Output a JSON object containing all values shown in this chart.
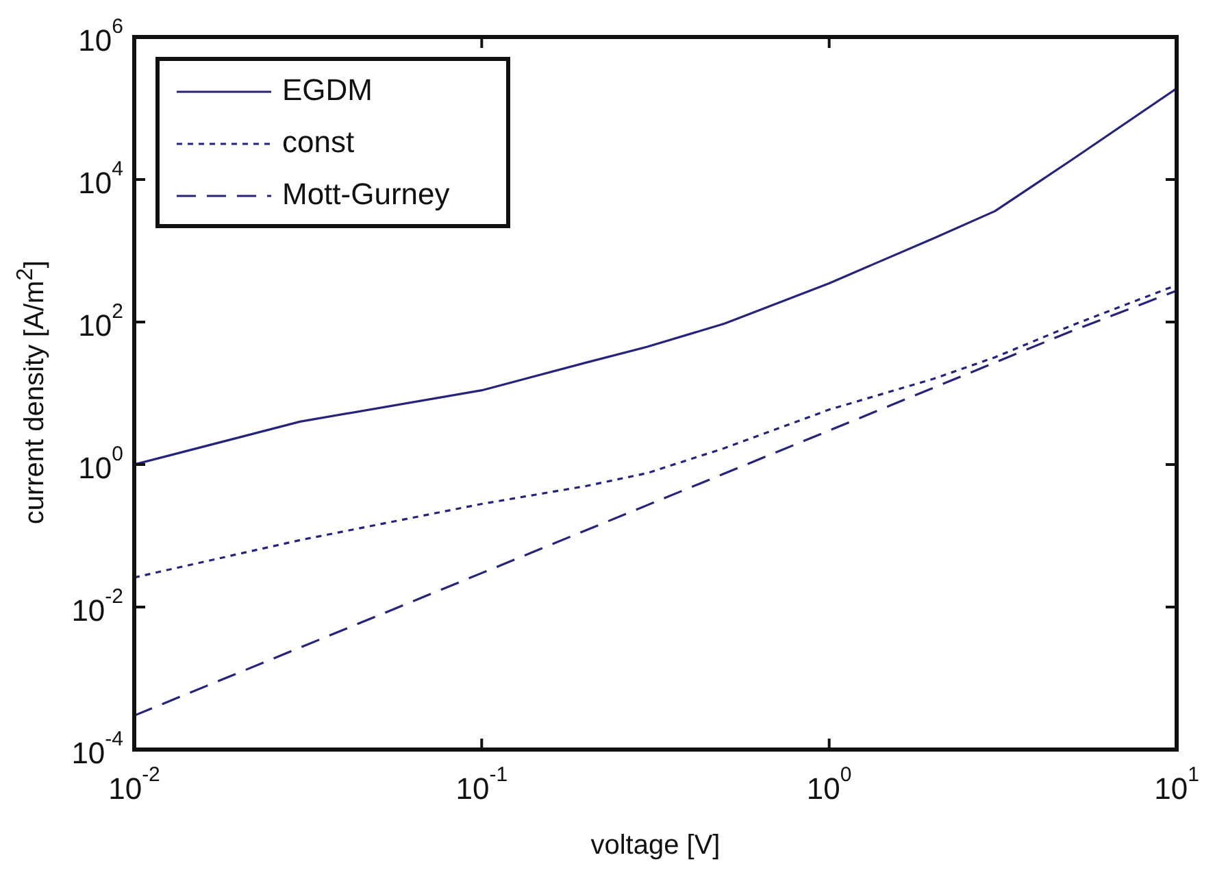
{
  "chart_data": {
    "type": "line",
    "xlabel": "voltage [V]",
    "ylabel": "current density [A/m$^{2}$]",
    "log": "xy",
    "grid": false,
    "legend": "top left",
    "marker": "none",
    "xlim": [
      0.01,
      10
    ],
    "ylim": [
      0.0001,
      1000000
    ],
    "xticks": [
      {
        "value": 0.01,
        "label": "10$^{-2}$"
      },
      {
        "value": 0.1,
        "label": "10$^{-1}$"
      },
      {
        "value": 1,
        "label": "10$^{0}$"
      },
      {
        "value": 10,
        "label": "10$^{1}$"
      }
    ],
    "yticks": [
      {
        "value": 0.0001,
        "label": "10$^{-4}$"
      },
      {
        "value": 0.01,
        "label": "10$^{-2}$"
      },
      {
        "value": 1,
        "label": "10$^{0}$"
      },
      {
        "value": 100,
        "label": "10$^{2}$"
      },
      {
        "value": 10000,
        "label": "10$^{4}$"
      },
      {
        "value": 1000000,
        "label": "10$^{6}$"
      }
    ],
    "x": [
      0.01,
      0.03,
      0.1,
      0.2,
      0.3,
      0.5,
      1,
      2,
      3,
      5,
      10
    ],
    "series": [
      {
        "name": "EGDM",
        "color": "#25237a",
        "line_style": "solid",
        "values": [
          1,
          4,
          11,
          27,
          45,
          95,
          350,
          1500,
          3600,
          19000,
          190000
        ]
      },
      {
        "name": "const",
        "color": "#25237a",
        "line_style": "dotted",
        "values": [
          0.026,
          0.087,
          0.28,
          0.5,
          0.76,
          1.7,
          5.9,
          16,
          32,
          90,
          330
        ]
      },
      {
        "name": "Mott-Gurney",
        "color": "#25237a",
        "line_style": "dashed",
        "values": [
          0.0003,
          0.0027,
          0.03,
          0.12,
          0.27,
          0.75,
          3,
          12,
          27,
          75,
          275
        ]
      }
    ]
  }
}
